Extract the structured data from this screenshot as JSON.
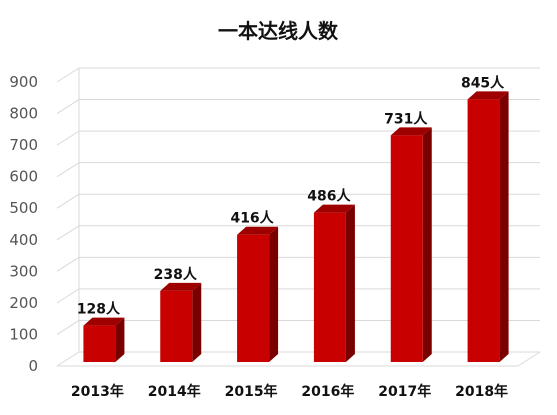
{
  "chart_data": {
    "type": "bar",
    "title": "一本达线人数",
    "categories": [
      "2013年",
      "2014年",
      "2015年",
      "2016年",
      "2017年",
      "2018年"
    ],
    "values": [
      128,
      238,
      416,
      486,
      731,
      845
    ],
    "data_labels": [
      "128人",
      "238人",
      "416人",
      "486人",
      "731人",
      "845人"
    ],
    "ylim": [
      0,
      900
    ],
    "y_ticks": [
      "0",
      "100",
      "200",
      "300",
      "400",
      "500",
      "600",
      "700",
      "800",
      "900"
    ],
    "grid": true,
    "legend": "none",
    "style": "3d",
    "colors": {
      "bar_front": "#c80000",
      "bar_side": "#7a0000",
      "bar_top": "#9e0000",
      "grid": "#d9d9d9"
    }
  }
}
